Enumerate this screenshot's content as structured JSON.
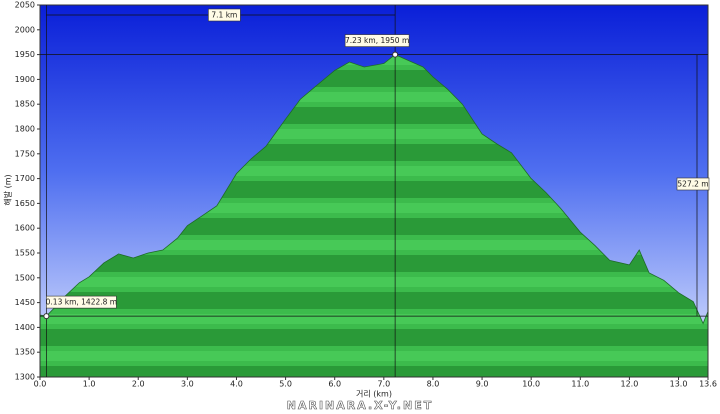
{
  "chart_data": {
    "type": "area",
    "x_label": "거리 (km)",
    "y_label": "해발 (m)",
    "x": [
      0,
      0.13,
      0.3,
      0.5,
      0.8,
      1.0,
      1.3,
      1.6,
      1.9,
      2.2,
      2.5,
      2.8,
      3.0,
      3.3,
      3.6,
      4.0,
      4.3,
      4.6,
      5.0,
      5.3,
      5.6,
      6.0,
      6.3,
      6.6,
      7.0,
      7.23,
      7.5,
      7.8,
      8.0,
      8.3,
      8.6,
      9.0,
      9.3,
      9.6,
      10.0,
      10.3,
      10.6,
      11.0,
      11.3,
      11.6,
      12.0,
      12.2,
      12.4,
      12.7,
      13.0,
      13.3,
      13.5,
      13.6
    ],
    "values": [
      1425,
      1422.8,
      1440,
      1462,
      1490,
      1502,
      1530,
      1548,
      1540,
      1550,
      1556,
      1580,
      1605,
      1625,
      1645,
      1710,
      1740,
      1765,
      1820,
      1860,
      1885,
      1918,
      1935,
      1925,
      1932,
      1950,
      1938,
      1925,
      1905,
      1880,
      1850,
      1790,
      1770,
      1752,
      1700,
      1672,
      1640,
      1592,
      1565,
      1535,
      1526,
      1556,
      1510,
      1495,
      1470,
      1452,
      1408,
      1432
    ],
    "color": "#2fa53f",
    "xlim": [
      0,
      13.6
    ],
    "ylim": [
      1300,
      2050
    ],
    "xticks": [
      {
        "value": 0,
        "label": "0.0"
      },
      {
        "value": 1,
        "label": "1.0"
      },
      {
        "value": 2,
        "label": "2.0"
      },
      {
        "value": 3,
        "label": "3.0"
      },
      {
        "value": 4,
        "label": "4.0"
      },
      {
        "value": 5,
        "label": "5.0"
      },
      {
        "value": 6,
        "label": "6.0"
      },
      {
        "value": 7,
        "label": "7.0"
      },
      {
        "value": 8,
        "label": "8.0"
      },
      {
        "value": 9,
        "label": "9.0"
      },
      {
        "value": 10,
        "label": "10.0"
      },
      {
        "value": 11,
        "label": "11.0"
      },
      {
        "value": 12,
        "label": "12.0"
      },
      {
        "value": 13,
        "label": "13.0"
      },
      13.6
    ],
    "yticks": [
      1300,
      1350,
      1400,
      1450,
      1500,
      1550,
      1600,
      1650,
      1700,
      1750,
      1800,
      1850,
      1900,
      1950,
      2000,
      2050
    ],
    "markers": [
      {
        "x": 0.13,
        "y": 1422.8,
        "label": "0.13 km, 1422.8 m"
      },
      {
        "x": 7.23,
        "y": 1950,
        "label": "7.23 km, 1950 m"
      }
    ],
    "distance_label": "7.1 km",
    "climb_label": "527.2 m",
    "watermark": "NARINARA.X-Y.NET"
  }
}
